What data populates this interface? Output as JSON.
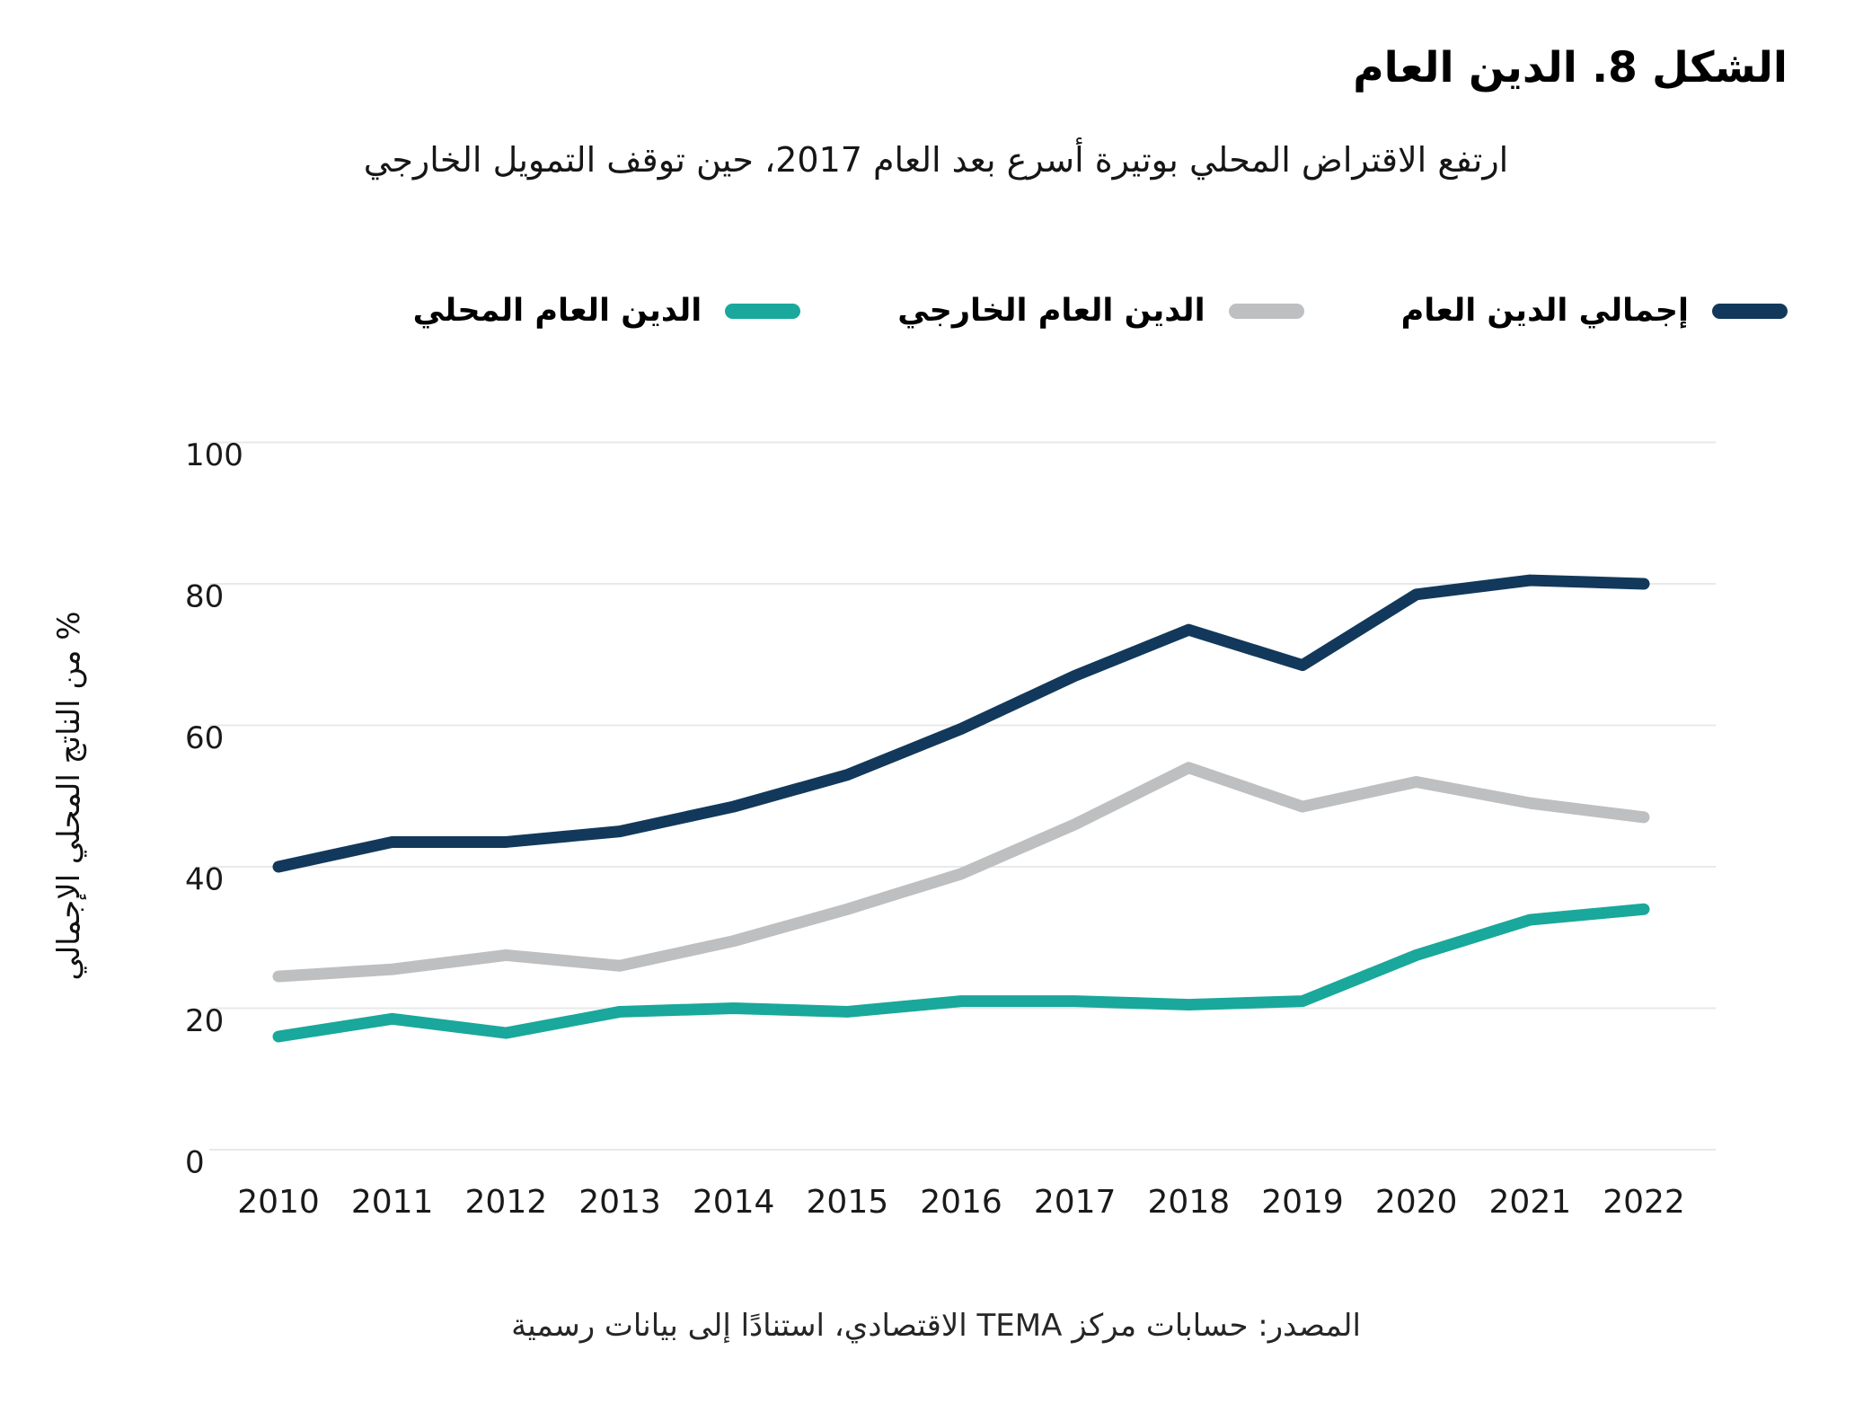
{
  "title": "الشكل 8. الدين العام",
  "subtitle": "ارتفع الاقتراض المحلي بوتيرة أسرع بعد العام 2017، حين توقف التمويل الخارجي",
  "source": "المصدر: حسابات مركز TEMA الاقتصادي، استنادًا إلى بيانات رسمية",
  "colors": {
    "total": "#12395B",
    "external": "#BDBFC1",
    "domestic": "#19A89B",
    "gridline": "#E9E9E9",
    "tick_text": "#1A1A1A"
  },
  "legend": [
    {
      "id": "total",
      "label": "إجمالي الدين العام",
      "color": "#12395B"
    },
    {
      "id": "external",
      "label": "الدين العام الخارجي",
      "color": "#BDBFC1"
    },
    {
      "id": "domestic",
      "label": "الدين العام المحلي",
      "color": "#19A89B"
    }
  ],
  "chart_data": {
    "type": "line",
    "x": [
      2010,
      2011,
      2012,
      2013,
      2014,
      2015,
      2016,
      2017,
      2018,
      2019,
      2020,
      2021,
      2022
    ],
    "series": [
      {
        "id": "total",
        "name": "إجمالي الدين العام",
        "color": "#12395B",
        "values": [
          40,
          43.5,
          43.5,
          45,
          48.5,
          53,
          59.5,
          67,
          73.5,
          68.5,
          78.5,
          80.5,
          80
        ]
      },
      {
        "id": "external",
        "name": "الدين العام الخارجي",
        "color": "#BDBFC1",
        "values": [
          24.5,
          25.5,
          27.5,
          26,
          29.5,
          34,
          39,
          46,
          54,
          48.5,
          52,
          49,
          47
        ]
      },
      {
        "id": "domestic",
        "name": "الدين العام المحلي",
        "color": "#19A89B",
        "values": [
          16,
          18.5,
          16.5,
          19.5,
          20,
          19.5,
          21,
          21,
          20.5,
          21,
          27.5,
          32.5,
          34
        ]
      }
    ],
    "ylabel": "% من الناتج المحلي الإجمالي",
    "xlabel": "",
    "yticks": [
      0,
      20,
      40,
      60,
      80,
      100
    ],
    "ylim": [
      0,
      100
    ],
    "grid": true,
    "legend_position": "top"
  }
}
